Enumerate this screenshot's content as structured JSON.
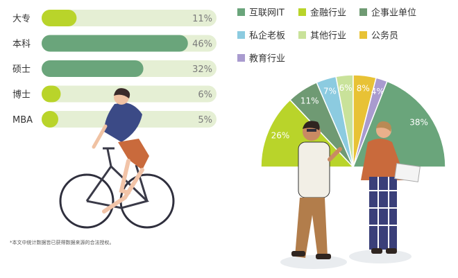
{
  "chart_data": [
    {
      "type": "bar",
      "orientation": "horizontal",
      "categories": [
        "大专",
        "本科",
        "硕士",
        "博士",
        "MBA"
      ],
      "values": [
        11,
        46,
        32,
        6,
        5
      ],
      "value_labels": [
        "11%",
        "46%",
        "32%",
        "6%",
        "5%"
      ],
      "xlim": [
        0,
        100
      ],
      "colors": {
        "filled_light": "#b9d42a",
        "filled_dark": "#6aa57b",
        "track": "#e5efd4"
      }
    },
    {
      "type": "pie",
      "shape": "half-pie (semicircle)",
      "legend_placement": "top",
      "slices": [
        {
          "name": "互联网IT",
          "value": 38,
          "label": "38%",
          "color": "#6aa57b"
        },
        {
          "name": "金融行业",
          "value": 26,
          "label": "26%",
          "color": "#b9d42a"
        },
        {
          "name": "企事业单位",
          "value": 11,
          "label": "11%",
          "color": "#6f9a73"
        },
        {
          "name": "私企老板",
          "value": 7,
          "label": "7%",
          "color": "#8ccbe0"
        },
        {
          "name": "其他行业",
          "value": 6,
          "label": "6%",
          "color": "#c9e29a"
        },
        {
          "name": "公务员",
          "value": 8,
          "label": "8%",
          "color": "#e8c235"
        },
        {
          "name": "教育行业",
          "value": 4,
          "label": "4%",
          "color": "#a99bcf"
        }
      ],
      "display_order_left_to_right": [
        "金融行业",
        "企事业单位",
        "私企老板",
        "其他行业",
        "公务员",
        "教育行业",
        "互联网IT"
      ]
    }
  ],
  "footnote": "*本文中统计数据皆已获得数据来源的合法授权。",
  "illustrations": [
    "cyclist-illustration",
    "two-people-talking-illustration"
  ]
}
